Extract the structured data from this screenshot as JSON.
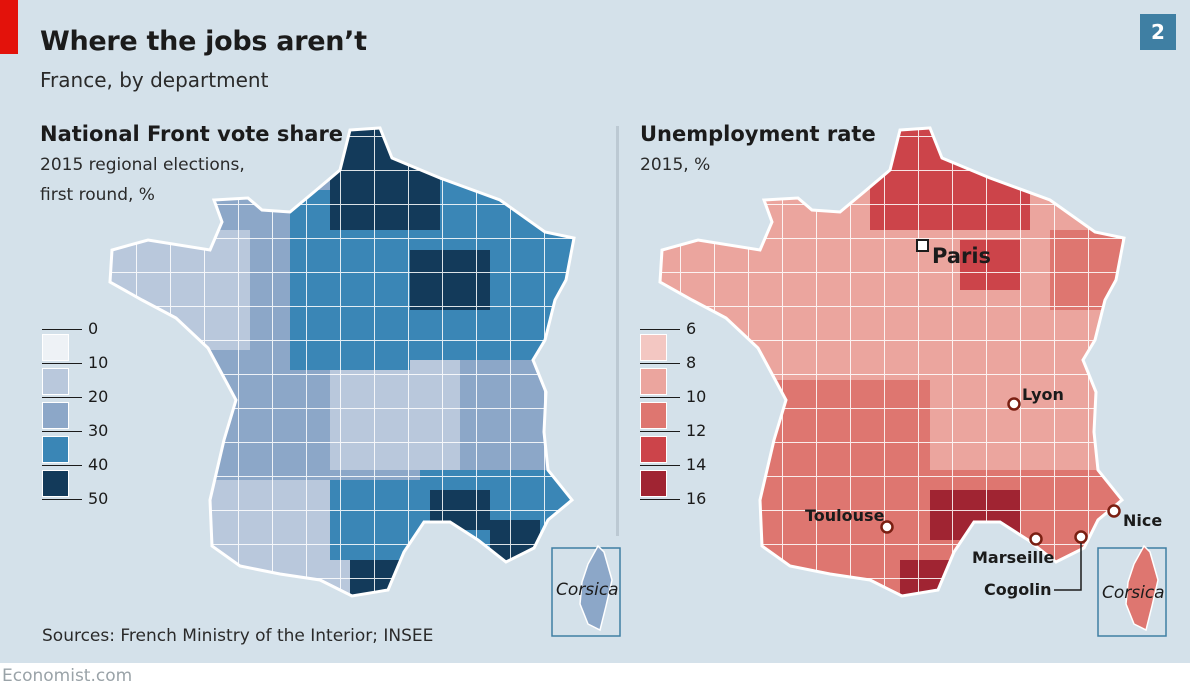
{
  "header": {
    "title": "Where the jobs aren’t",
    "subtitle": "France, by department",
    "chart_number": "2"
  },
  "left_panel": {
    "title": "National Front vote share",
    "sub_line1": "2015 regional elections,",
    "sub_line2": "first round, %",
    "legend": {
      "ticks": [
        "0",
        "10",
        "20",
        "30",
        "40",
        "50"
      ],
      "colors": [
        "#eef2f6",
        "#b9c8dc",
        "#8ca7c8",
        "#3a86b6",
        "#133a5a"
      ]
    },
    "inset_label": "Corsica"
  },
  "right_panel": {
    "title": "Unemployment rate",
    "sub_line1": "2015, %",
    "legend": {
      "ticks": [
        "6",
        "8",
        "10",
        "12",
        "14",
        "16"
      ],
      "colors": [
        "#f3c7c2",
        "#eba59e",
        "#de7670",
        "#cc444a",
        "#a02432"
      ]
    },
    "inset_label": "Corsica",
    "cities": {
      "paris": "Paris",
      "lyon": "Lyon",
      "toulouse": "Toulouse",
      "marseille": "Marseille",
      "nice": "Nice",
      "cogolin": "Cogolin"
    }
  },
  "footer": {
    "sources": "Sources: French Ministry of the Interior; INSEE",
    "brand": "Economist.com"
  },
  "colors": {
    "background": "#d4e1ea",
    "accent_red": "#e3120b",
    "badge_blue": "#3f7fa3"
  }
}
